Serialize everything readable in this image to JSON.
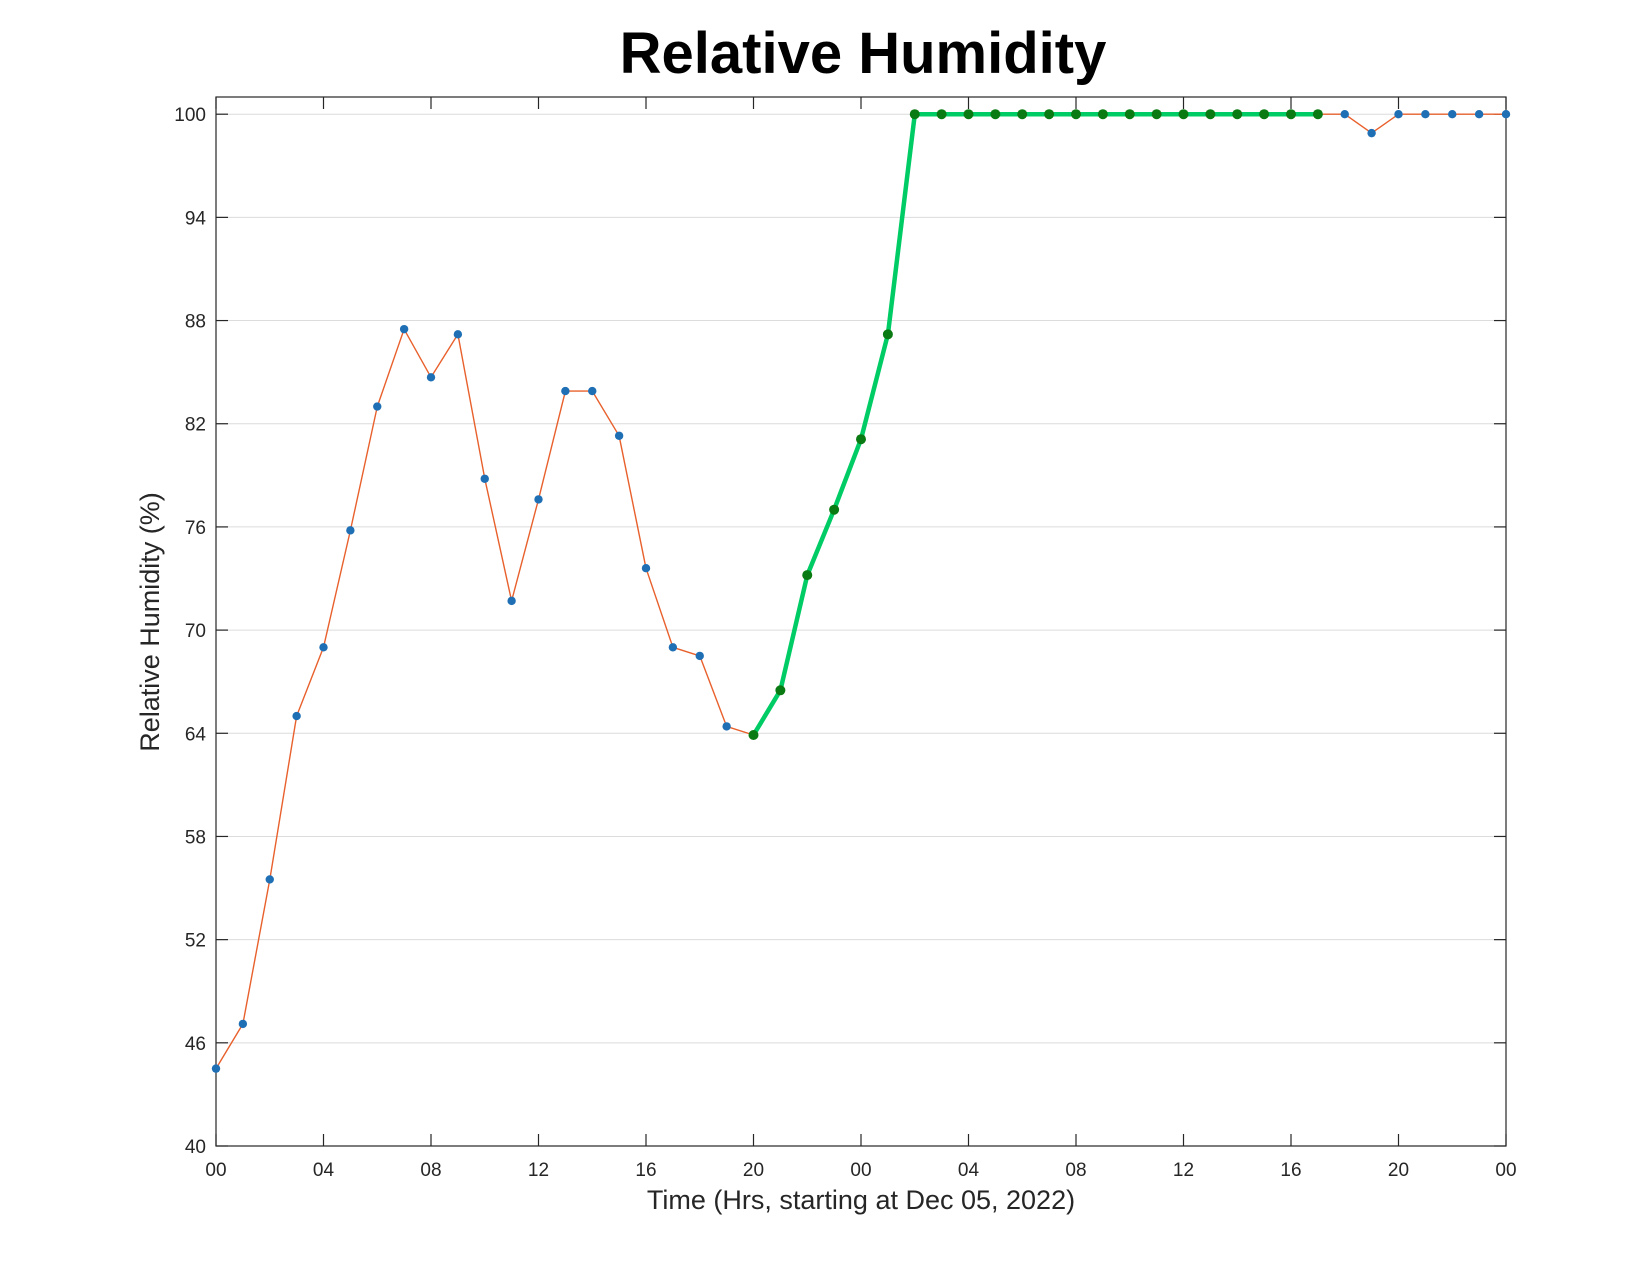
{
  "chart_data": {
    "type": "line",
    "title": "Relative Humidity",
    "xlabel": "Time (Hrs, starting at Dec 05, 2022)",
    "ylabel": "Relative Humidity (%)",
    "x_unit": "hours",
    "xlim": [
      0,
      48
    ],
    "ylim": [
      40,
      101
    ],
    "yticks": [
      40,
      46,
      52,
      58,
      64,
      70,
      76,
      82,
      88,
      94,
      100
    ],
    "xtick_hours": [
      0,
      4,
      8,
      12,
      16,
      20,
      24,
      28,
      32,
      36,
      40,
      44,
      48
    ],
    "xtick_labels": [
      "00",
      "04",
      "08",
      "12",
      "16",
      "20",
      "00",
      "04",
      "08",
      "12",
      "16",
      "20",
      "00"
    ],
    "grid": "horizontal",
    "colors": {
      "line": "#e8602c",
      "marker": "#1f6fb5",
      "highlight_line": "#00cc66",
      "highlight_marker": "#0a7a12"
    },
    "series": [
      {
        "role": "main",
        "x": [
          0,
          1,
          2,
          3,
          4,
          5,
          6,
          7,
          8,
          9,
          10,
          11,
          12,
          13,
          14,
          15,
          16,
          17,
          18,
          19,
          20,
          21,
          22,
          23,
          24,
          25,
          26,
          27,
          28,
          29,
          30,
          31,
          32,
          33,
          34,
          35,
          36,
          37,
          38,
          39,
          40,
          41,
          42,
          43,
          44,
          45,
          46,
          47,
          48
        ],
        "values": [
          44.5,
          47.1,
          55.5,
          65.0,
          69.0,
          75.8,
          83.0,
          87.5,
          84.7,
          87.2,
          78.8,
          71.7,
          77.6,
          83.9,
          83.9,
          81.3,
          73.6,
          69.0,
          68.5,
          64.4,
          63.9,
          66.5,
          73.2,
          77.0,
          81.1,
          87.2,
          100,
          100,
          100,
          100,
          100,
          100,
          100,
          100,
          100,
          100,
          100,
          100,
          100,
          100,
          100,
          100,
          100,
          98.9,
          100,
          100,
          100,
          100,
          100
        ]
      },
      {
        "role": "highlight",
        "x": [
          20,
          21,
          22,
          23,
          24,
          25,
          26,
          27,
          28,
          29,
          30,
          31,
          32,
          33,
          34,
          35,
          36,
          37,
          38,
          39,
          40,
          41
        ],
        "values": [
          63.9,
          66.5,
          73.2,
          77.0,
          81.1,
          87.2,
          100,
          100,
          100,
          100,
          100,
          100,
          100,
          100,
          100,
          100,
          100,
          100,
          100,
          100,
          100,
          100
        ]
      }
    ]
  }
}
